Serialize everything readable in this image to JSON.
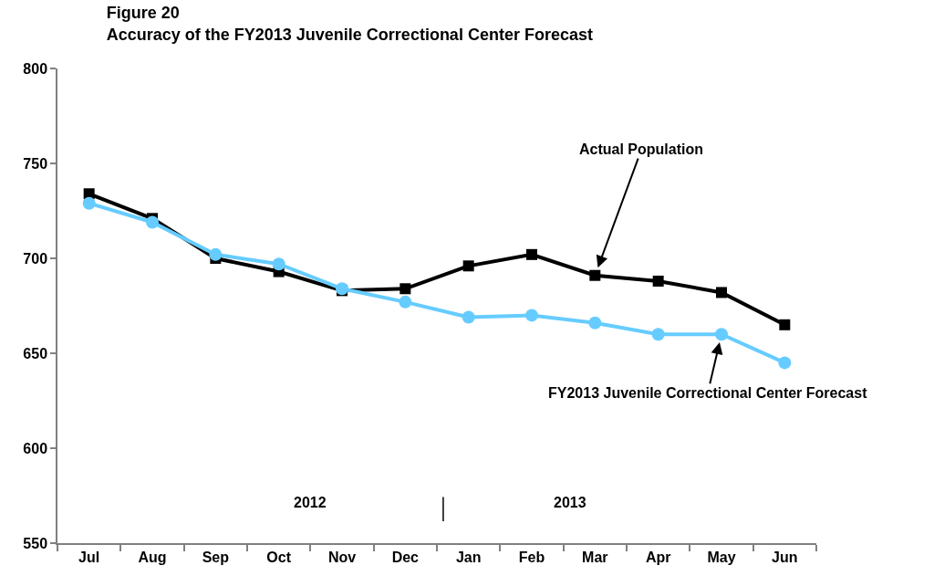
{
  "chart_data": {
    "type": "line",
    "title": "Figure 20\nAccuracy of the FY2013 Juvenile Correctional Center Forecast",
    "categories": [
      "Jul",
      "Aug",
      "Sep",
      "Oct",
      "Nov",
      "Dec",
      "Jan",
      "Feb",
      "Mar",
      "Apr",
      "May",
      "Jun"
    ],
    "series": [
      {
        "color": "#000000",
        "marker": "square",
        "values": [
          734,
          721,
          700,
          693,
          683,
          684,
          696,
          702,
          691,
          688,
          682,
          665
        ]
      },
      {
        "color": "#66ccff",
        "marker": "circle",
        "values": [
          729,
          719,
          702,
          697,
          684,
          677,
          669,
          670,
          666,
          660,
          660,
          645
        ]
      }
    ],
    "ylim": [
      550,
      800
    ],
    "yticks": [
      550,
      600,
      650,
      700,
      750,
      800
    ],
    "annotations": [
      {
        "text": "Actual Population",
        "x": "Mar",
        "y": 691
      },
      {
        "text": "FY2013 Juvenile Correctional Center Forecast",
        "x": "May",
        "y": 660
      },
      "2012",
      "2013"
    ]
  }
}
